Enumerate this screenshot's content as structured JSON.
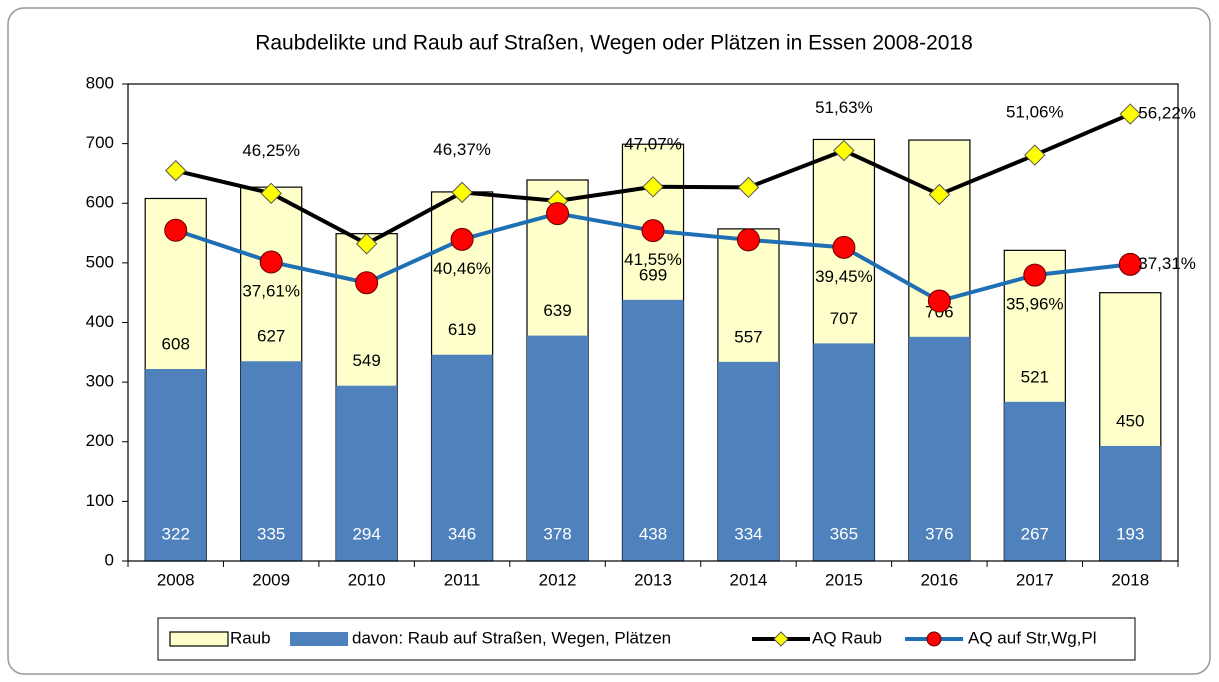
{
  "chart_data": {
    "type": "bar",
    "title": "Raubdelikte und Raub auf Straßen, Wegen oder Plätzen in Essen 2008-2018",
    "categories": [
      "2008",
      "2009",
      "2010",
      "2011",
      "2012",
      "2013",
      "2014",
      "2015",
      "2016",
      "2017",
      "2018"
    ],
    "ylim": [
      0,
      800
    ],
    "yticks": [
      0,
      100,
      200,
      300,
      400,
      500,
      600,
      700,
      800
    ],
    "y2lim": [
      0,
      60
    ],
    "grid": false,
    "legend": "bottom",
    "series": [
      {
        "name": "Raub",
        "type": "bar",
        "color": "#ffffcc",
        "values": [
          608,
          627,
          549,
          619,
          639,
          699,
          557,
          707,
          706,
          521,
          450
        ]
      },
      {
        "name": "davon: Raub auf Straßen, Wegen, Plätzen",
        "type": "bar",
        "color": "#4f81bd",
        "values": [
          322,
          335,
          294,
          346,
          378,
          438,
          334,
          365,
          376,
          267,
          193
        ]
      },
      {
        "name": "AQ Raub",
        "type": "line",
        "axis": "y2",
        "color": "#000000",
        "marker": "diamond",
        "marker_color": "#ffff00",
        "values": [
          49.1,
          46.25,
          39.9,
          46.37,
          45.3,
          47.07,
          47.0,
          51.63,
          46.1,
          51.06,
          56.22
        ],
        "value_labels": [
          null,
          "46,25%",
          null,
          "46,37%",
          null,
          "47,07%",
          null,
          "51,63%",
          null,
          "51,06%",
          "56,22%"
        ]
      },
      {
        "name": "AQ auf Str,Wg,Pl",
        "type": "line",
        "axis": "y2",
        "color": "#1f6fb5",
        "marker": "circle",
        "marker_color": "#ff0000",
        "values": [
          41.6,
          37.61,
          35.0,
          40.46,
          43.7,
          41.55,
          40.4,
          39.45,
          32.7,
          35.96,
          37.31
        ],
        "value_labels": [
          null,
          "37,61%",
          null,
          "40,46%",
          null,
          "41,55%",
          null,
          "39,45%",
          null,
          "35,96%",
          "37,31%"
        ]
      }
    ]
  }
}
